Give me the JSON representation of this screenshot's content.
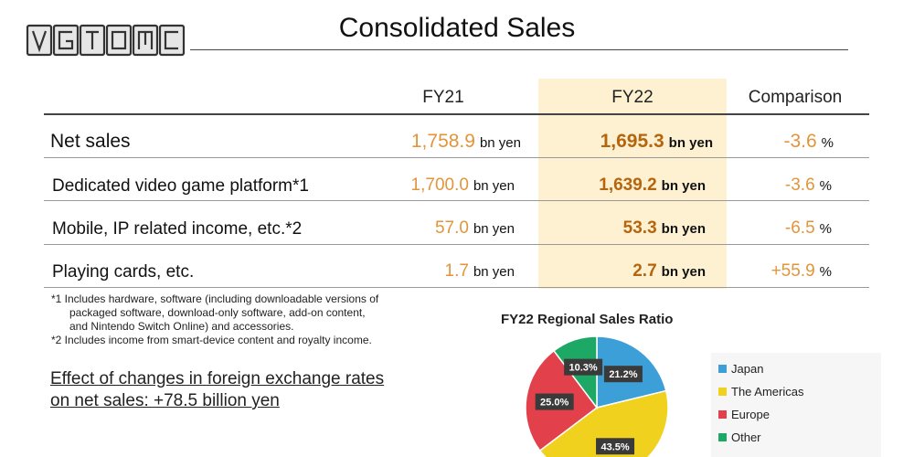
{
  "logo": {
    "text": "VGTOMC"
  },
  "title": "Consolidated Sales",
  "table": {
    "columns": [
      "FY21",
      "FY22",
      "Comparison"
    ],
    "rows": [
      {
        "label": "Net sales",
        "fy21": "1,758.9",
        "fy21_unit": "bn yen",
        "fy22": "1,695.3",
        "fy22_unit": "bn yen",
        "comparison": "-3.6",
        "comparison_unit": "%"
      },
      {
        "label": "Dedicated video game platform*1",
        "fy21": "1,700.0",
        "fy21_unit": "bn yen",
        "fy22": "1,639.2",
        "fy22_unit": "bn yen",
        "comparison": "-3.6",
        "comparison_unit": "%"
      },
      {
        "label": "Mobile, IP related income, etc.*2",
        "fy21": "57.0",
        "fy21_unit": "bn yen",
        "fy22": "53.3",
        "fy22_unit": "bn yen",
        "comparison": "-6.5",
        "comparison_unit": "%"
      },
      {
        "label": "Playing cards, etc.",
        "fy21": "1.7",
        "fy21_unit": "bn yen",
        "fy22": "2.7",
        "fy22_unit": "bn yen",
        "comparison": "+55.9",
        "comparison_unit": "%"
      }
    ]
  },
  "footnotes": [
    "*1 Includes hardware, software (including downloadable versions of",
    "packaged software, download-only software, add-on content,",
    "and Nintendo Switch Online) and accessories.",
    "*2 Includes income from smart-device content and royalty income."
  ],
  "fx_note": [
    "Effect of changes in foreign exchange rates",
    "on net sales: +78.5 billion yen"
  ],
  "colors": {
    "accent_number": "#e2953a",
    "accent_number_bold": "#b5650e",
    "highlight_column": "#fdf1d2"
  },
  "chart_data": {
    "type": "pie",
    "title": "FY22 Regional Sales Ratio",
    "legend_position": "right",
    "labels": [
      "Japan",
      "The Americas",
      "Europe",
      "Other"
    ],
    "values": [
      21.2,
      43.5,
      25.0,
      10.3
    ],
    "value_labels": [
      "21.2%",
      "43.5%",
      "25.0%",
      "10.3%"
    ],
    "colors": [
      "#3d9fd7",
      "#f0d21e",
      "#e2404a",
      "#1ea866"
    ]
  }
}
